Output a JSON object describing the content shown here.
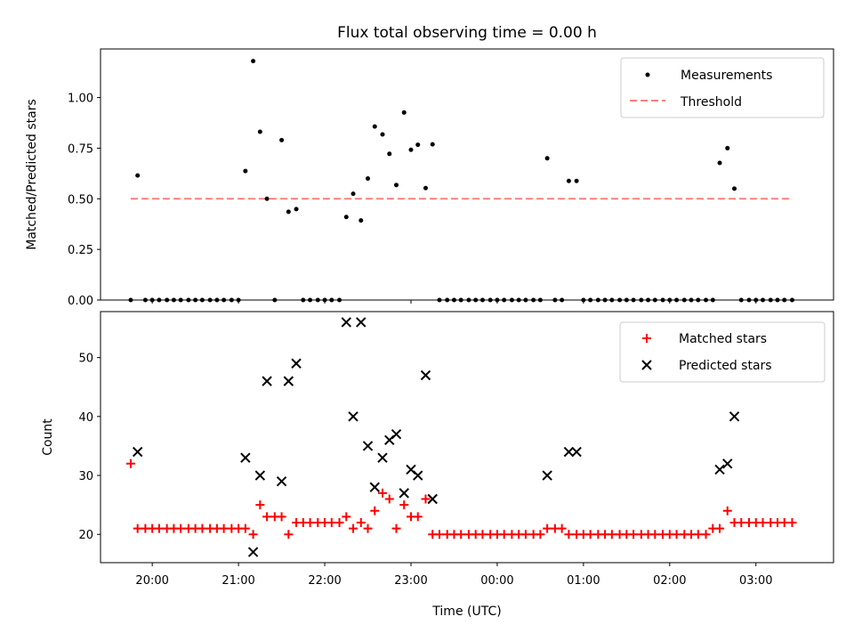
{
  "colors": {
    "measurement": "#000000",
    "threshold": "#ff7f7f",
    "matched": "#ff0000",
    "predicted": "#000000",
    "axes": "#000000"
  },
  "chart_data": [
    {
      "type": "scatter",
      "title": "Flux total observing time = 0.00 h",
      "xlabel": "",
      "ylabel": "Matched/Predicted stars",
      "xlim_hours": [
        19.4,
        27.9
      ],
      "ylim": [
        0,
        1.24
      ],
      "yticks": [
        0.0,
        0.25,
        0.5,
        0.75,
        1.0
      ],
      "ytick_labels": [
        "0.00",
        "0.25",
        "0.50",
        "0.75",
        "1.00"
      ],
      "legend": {
        "position": "top-right",
        "entries": [
          "Measurements",
          "Threshold"
        ]
      },
      "threshold": {
        "name": "Threshold",
        "value": 0.5,
        "x_start": 19.75,
        "x_end": 27.4
      },
      "series": [
        {
          "name": "Measurements",
          "marker": "dot",
          "points": [
            [
              19.75,
              0
            ],
            [
              19.83,
              0.615
            ],
            [
              19.92,
              0
            ],
            [
              20.0,
              0
            ],
            [
              20.08,
              0
            ],
            [
              20.17,
              0
            ],
            [
              20.25,
              0
            ],
            [
              20.33,
              0
            ],
            [
              20.42,
              0
            ],
            [
              20.5,
              0
            ],
            [
              20.58,
              0
            ],
            [
              20.67,
              0
            ],
            [
              20.75,
              0
            ],
            [
              20.83,
              0
            ],
            [
              20.92,
              0
            ],
            [
              21.0,
              0
            ],
            [
              21.08,
              0.637
            ],
            [
              21.17,
              1.18
            ],
            [
              21.25,
              0.831
            ],
            [
              21.33,
              0.5
            ],
            [
              21.42,
              0
            ],
            [
              21.5,
              0.79
            ],
            [
              21.58,
              0.436
            ],
            [
              21.67,
              0.449
            ],
            [
              21.75,
              0
            ],
            [
              21.83,
              0
            ],
            [
              21.92,
              0
            ],
            [
              22.0,
              0
            ],
            [
              22.08,
              0
            ],
            [
              22.17,
              0
            ],
            [
              22.25,
              0.41
            ],
            [
              22.33,
              0.525
            ],
            [
              22.42,
              0.393
            ],
            [
              22.5,
              0.6
            ],
            [
              22.58,
              0.857
            ],
            [
              22.67,
              0.818
            ],
            [
              22.75,
              0.722
            ],
            [
              22.83,
              0.568
            ],
            [
              22.92,
              0.926
            ],
            [
              23.0,
              0.742
            ],
            [
              23.08,
              0.767
            ],
            [
              23.17,
              0.553
            ],
            [
              23.25,
              0.769
            ],
            [
              23.33,
              0
            ],
            [
              23.42,
              0
            ],
            [
              23.5,
              0
            ],
            [
              23.58,
              0
            ],
            [
              23.67,
              0
            ],
            [
              23.75,
              0
            ],
            [
              23.83,
              0
            ],
            [
              23.92,
              0
            ],
            [
              24.0,
              0
            ],
            [
              24.08,
              0
            ],
            [
              24.17,
              0
            ],
            [
              24.25,
              0
            ],
            [
              24.33,
              0
            ],
            [
              24.42,
              0
            ],
            [
              24.5,
              0
            ],
            [
              24.58,
              0.7
            ],
            [
              24.67,
              0
            ],
            [
              24.75,
              0
            ],
            [
              24.83,
              0.588
            ],
            [
              24.92,
              0.588
            ],
            [
              25.0,
              0
            ],
            [
              25.08,
              0
            ],
            [
              25.17,
              0
            ],
            [
              25.25,
              0
            ],
            [
              25.33,
              0
            ],
            [
              25.42,
              0
            ],
            [
              25.5,
              0
            ],
            [
              25.58,
              0
            ],
            [
              25.67,
              0
            ],
            [
              25.75,
              0
            ],
            [
              25.83,
              0
            ],
            [
              25.92,
              0
            ],
            [
              26.0,
              0
            ],
            [
              26.08,
              0
            ],
            [
              26.17,
              0
            ],
            [
              26.25,
              0
            ],
            [
              26.33,
              0
            ],
            [
              26.42,
              0
            ],
            [
              26.5,
              0
            ],
            [
              26.58,
              0.677
            ],
            [
              26.67,
              0.75
            ],
            [
              26.75,
              0.55
            ],
            [
              26.83,
              0
            ],
            [
              26.92,
              0
            ],
            [
              27.0,
              0
            ],
            [
              27.08,
              0
            ],
            [
              27.17,
              0
            ],
            [
              27.25,
              0
            ],
            [
              27.33,
              0
            ],
            [
              27.42,
              0
            ]
          ]
        }
      ]
    },
    {
      "type": "scatter",
      "title": "",
      "xlabel": "Time (UTC)",
      "ylabel": "Count",
      "xlim_hours": [
        19.4,
        27.9
      ],
      "ylim": [
        15.2,
        57.8
      ],
      "yticks": [
        20,
        30,
        40,
        50
      ],
      "ytick_labels": [
        "20",
        "30",
        "40",
        "50"
      ],
      "xticks_hours": [
        20,
        21,
        22,
        23,
        24,
        25,
        26,
        27
      ],
      "xtick_labels": [
        "20:00",
        "21:00",
        "22:00",
        "23:00",
        "00:00",
        "01:00",
        "02:00",
        "03:00"
      ],
      "legend": {
        "position": "top-right",
        "entries": [
          "Matched stars",
          "Predicted stars"
        ]
      },
      "series": [
        {
          "name": "Matched stars",
          "marker": "plus",
          "points": [
            [
              19.75,
              32
            ],
            [
              19.83,
              21
            ],
            [
              19.92,
              21
            ],
            [
              20.0,
              21
            ],
            [
              20.08,
              21
            ],
            [
              20.17,
              21
            ],
            [
              20.25,
              21
            ],
            [
              20.33,
              21
            ],
            [
              20.42,
              21
            ],
            [
              20.5,
              21
            ],
            [
              20.58,
              21
            ],
            [
              20.67,
              21
            ],
            [
              20.75,
              21
            ],
            [
              20.83,
              21
            ],
            [
              20.92,
              21
            ],
            [
              21.0,
              21
            ],
            [
              21.08,
              21
            ],
            [
              21.17,
              20
            ],
            [
              21.25,
              25
            ],
            [
              21.33,
              23
            ],
            [
              21.42,
              23
            ],
            [
              21.5,
              23
            ],
            [
              21.58,
              20
            ],
            [
              21.67,
              22
            ],
            [
              21.75,
              22
            ],
            [
              21.83,
              22
            ],
            [
              21.92,
              22
            ],
            [
              22.0,
              22
            ],
            [
              22.08,
              22
            ],
            [
              22.17,
              22
            ],
            [
              22.25,
              23
            ],
            [
              22.33,
              21
            ],
            [
              22.42,
              22
            ],
            [
              22.5,
              21
            ],
            [
              22.58,
              24
            ],
            [
              22.67,
              27
            ],
            [
              22.75,
              26
            ],
            [
              22.83,
              21
            ],
            [
              22.92,
              25
            ],
            [
              23.0,
              23
            ],
            [
              23.08,
              23
            ],
            [
              23.17,
              26
            ],
            [
              23.25,
              20
            ],
            [
              23.33,
              20
            ],
            [
              23.42,
              20
            ],
            [
              23.5,
              20
            ],
            [
              23.58,
              20
            ],
            [
              23.67,
              20
            ],
            [
              23.75,
              20
            ],
            [
              23.83,
              20
            ],
            [
              23.92,
              20
            ],
            [
              24.0,
              20
            ],
            [
              24.08,
              20
            ],
            [
              24.17,
              20
            ],
            [
              24.25,
              20
            ],
            [
              24.33,
              20
            ],
            [
              24.42,
              20
            ],
            [
              24.5,
              20
            ],
            [
              24.58,
              21
            ],
            [
              24.67,
              21
            ],
            [
              24.75,
              21
            ],
            [
              24.83,
              20
            ],
            [
              24.92,
              20
            ],
            [
              25.0,
              20
            ],
            [
              25.08,
              20
            ],
            [
              25.17,
              20
            ],
            [
              25.25,
              20
            ],
            [
              25.33,
              20
            ],
            [
              25.42,
              20
            ],
            [
              25.5,
              20
            ],
            [
              25.58,
              20
            ],
            [
              25.67,
              20
            ],
            [
              25.75,
              20
            ],
            [
              25.83,
              20
            ],
            [
              25.92,
              20
            ],
            [
              26.0,
              20
            ],
            [
              26.08,
              20
            ],
            [
              26.17,
              20
            ],
            [
              26.25,
              20
            ],
            [
              26.33,
              20
            ],
            [
              26.42,
              20
            ],
            [
              26.5,
              21
            ],
            [
              26.58,
              21
            ],
            [
              26.67,
              24
            ],
            [
              26.75,
              22
            ],
            [
              26.83,
              22
            ],
            [
              26.92,
              22
            ],
            [
              27.0,
              22
            ],
            [
              27.08,
              22
            ],
            [
              27.17,
              22
            ],
            [
              27.25,
              22
            ],
            [
              27.33,
              22
            ],
            [
              27.42,
              22
            ]
          ]
        },
        {
          "name": "Predicted stars",
          "marker": "x",
          "points": [
            [
              19.83,
              34
            ],
            [
              21.08,
              33
            ],
            [
              21.17,
              17
            ],
            [
              21.25,
              30
            ],
            [
              21.33,
              46
            ],
            [
              21.5,
              29
            ],
            [
              21.58,
              46
            ],
            [
              21.67,
              49
            ],
            [
              22.25,
              56
            ],
            [
              22.33,
              40
            ],
            [
              22.42,
              56
            ],
            [
              22.5,
              35
            ],
            [
              22.58,
              28
            ],
            [
              22.67,
              33
            ],
            [
              22.75,
              36
            ],
            [
              22.83,
              37
            ],
            [
              22.92,
              27
            ],
            [
              23.0,
              31
            ],
            [
              23.08,
              30
            ],
            [
              23.17,
              47
            ],
            [
              23.25,
              26
            ],
            [
              24.58,
              30
            ],
            [
              24.83,
              34
            ],
            [
              24.92,
              34
            ],
            [
              26.58,
              31
            ],
            [
              26.67,
              32
            ],
            [
              26.75,
              40
            ]
          ]
        }
      ]
    }
  ]
}
